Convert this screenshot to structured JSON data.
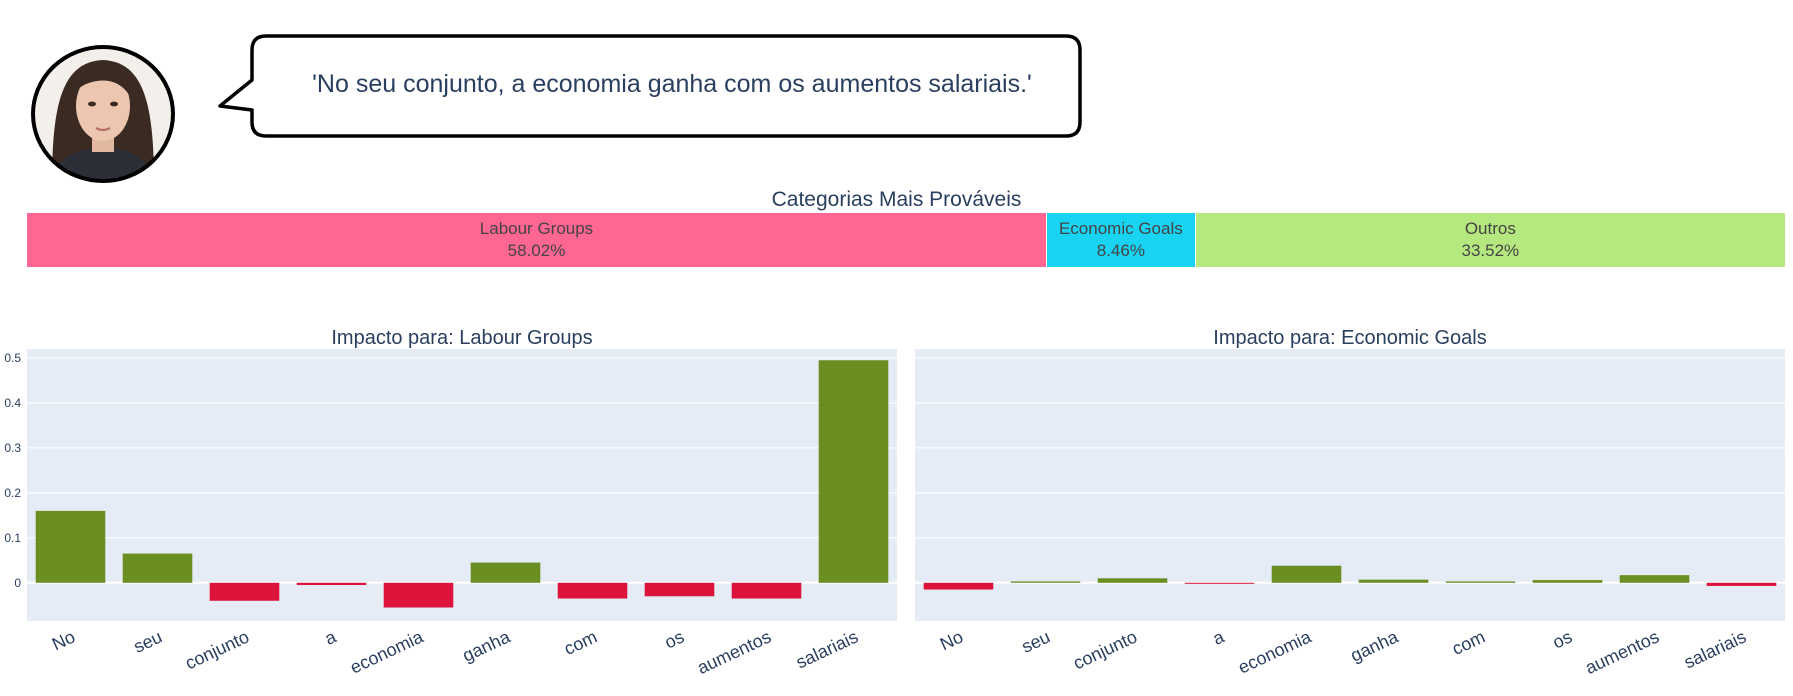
{
  "speaker": {
    "avatar_icon": "person-portrait-icon",
    "quote": "'No seu conjunto, a economia ganha com os aumentos salariais.'"
  },
  "probabilities": {
    "title": "Categorias Mais Prováveis",
    "segments": [
      {
        "label": "Labour Groups",
        "value": 58.02,
        "value_text": "58.02%",
        "color": "#ff6692"
      },
      {
        "label": "Economic Goals",
        "value": 8.46,
        "value_text": "8.46%",
        "color": "#19d3f3"
      },
      {
        "label": "Outros",
        "value": 33.52,
        "value_text": "33.52%",
        "color": "#b6e880"
      }
    ]
  },
  "colors": {
    "positive": "#6b8e23",
    "negative": "#dc143c",
    "plot_bg": "#e5ecf6"
  },
  "chart_data": [
    {
      "type": "bar",
      "title": "Impacto para: Labour Groups",
      "categories": [
        "No",
        "seu",
        "conjunto",
        "a",
        "economia",
        "ganha",
        "com",
        "os",
        "aumentos",
        "salariais"
      ],
      "values": [
        0.16,
        0.065,
        -0.04,
        -0.005,
        -0.055,
        0.045,
        -0.035,
        -0.03,
        -0.035,
        0.495
      ],
      "ylim": [
        -0.085,
        0.52
      ],
      "yticks": [
        0,
        0.1,
        0.2,
        0.3,
        0.4,
        0.5
      ],
      "ytick_labels": [
        "0",
        "0.1",
        "0.2",
        "0.3",
        "0.4",
        "0.5"
      ],
      "xlabel": "",
      "ylabel": "",
      "grid": true
    },
    {
      "type": "bar",
      "title": "Impacto para: Economic Goals",
      "categories": [
        "No",
        "seu",
        "conjunto",
        "a",
        "economia",
        "ganha",
        "com",
        "os",
        "aumentos",
        "salariais"
      ],
      "values": [
        -0.015,
        0.003,
        0.01,
        -0.002,
        0.038,
        0.007,
        0.003,
        0.006,
        0.017,
        -0.007
      ],
      "ylim": [
        -0.085,
        0.52
      ],
      "yticks": [
        0,
        0.1,
        0.2,
        0.3,
        0.4,
        0.5
      ],
      "ytick_labels": [],
      "xlabel": "",
      "ylabel": "",
      "grid": true
    }
  ]
}
